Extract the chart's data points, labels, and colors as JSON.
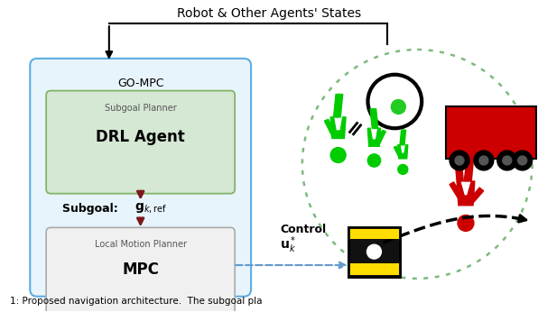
{
  "title": "Robot & Other Agents' States",
  "caption": "1: Proposed navigation architecture.  The subgoal pla",
  "go_mpc_label": "GO-MPC",
  "subgoal_planner_label": "Subgoal Planner",
  "drl_agent_label": "DRL Agent",
  "subgoal_text": "Subgoal: ",
  "local_motion_label": "Local Motion Planner",
  "mpc_label": "MPC",
  "control_text": "Control",
  "bg_color": "#ffffff",
  "go_mpc_box_facecolor": "#e8f4fb",
  "go_mpc_box_edge": "#5dade2",
  "subgoal_box_facecolor": "#d5e8d4",
  "subgoal_box_edge": "#82b366",
  "local_motion_box_facecolor": "#f0f0f0",
  "local_motion_box_edge": "#aaaaaa",
  "circle_color": "#7dba7d",
  "arrow_dark_red": "#7b1a1a",
  "dashed_arrow_color": "#6699cc",
  "green_person": "#00cc00",
  "red_person": "#cc0000",
  "red_vehicle": "#cc0000",
  "robot_yellow": "#ffdd00",
  "robot_black": "#111111"
}
